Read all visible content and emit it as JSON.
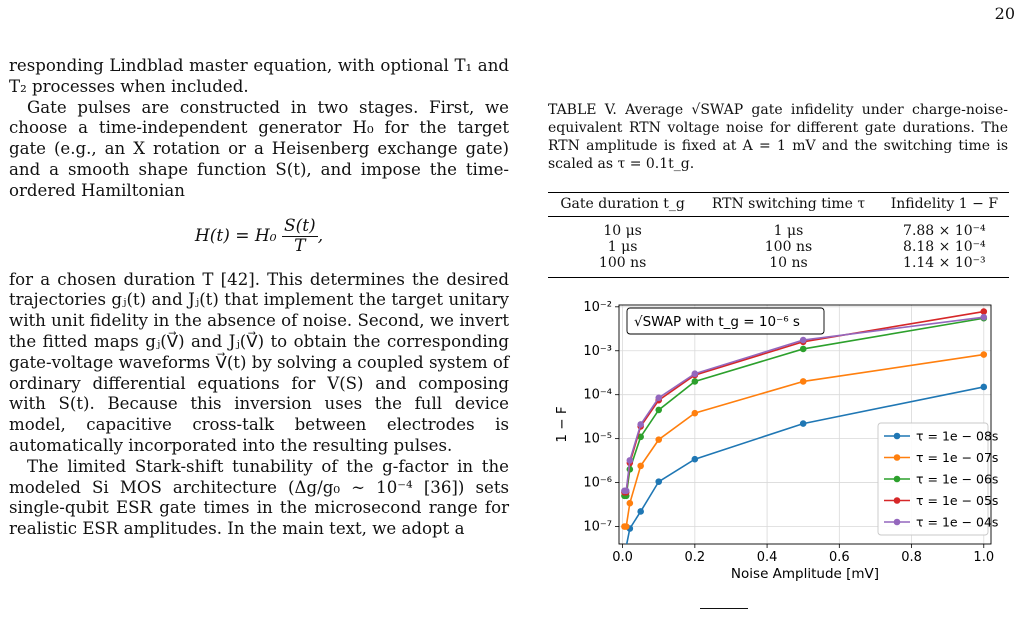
{
  "page_number": "20",
  "left": {
    "p1": "responding Lindblad master equation, with optional T₁ and T₂ processes when included.",
    "p2": "Gate pulses are constructed in two stages. First, we choose a time-independent generator H₀ for the target gate (e.g., an X rotation or a Heisenberg exchange gate) and a smooth shape function S(t), and impose the time-ordered Hamiltonian",
    "eq_lhs": "H(t) = H₀",
    "eq_num": "S(t)",
    "eq_den": "T",
    "eq_tail": ",",
    "p3": "for a chosen duration T [42]. This determines the desired trajectories gⱼ(t) and Jⱼ(t) that implement the target unitary with unit fidelity in the absence of noise. Second, we invert the fitted maps gⱼ(V⃗) and Jⱼ(V⃗) to obtain the corresponding gate-voltage waveforms V⃗(t) by solving a coupled system of ordinary differential equations for V(S) and composing with S(t). Because this inversion uses the full device model, capacitive cross-talk between electrodes is automatically incorporated into the resulting pulses.",
    "p4": "The limited Stark-shift tunability of the g-factor in the modeled Si MOS architecture (Δg/g₀ ∼ 10⁻⁴ [36]) sets single-qubit ESR gate times in the microsecond range for realistic ESR amplitudes. In the main text, we adopt a"
  },
  "caption": "TABLE V. Average √SWAP gate infidelity under charge-noise-equivalent RTN voltage noise for different gate durations. The RTN amplitude is fixed at A = 1 mV and the switching time is scaled as τ = 0.1t_g.",
  "table": {
    "headers": [
      "Gate duration t_g",
      "RTN switching time τ",
      "Infidelity 1 − F"
    ],
    "rows": [
      [
        "10 μs",
        "1 μs",
        "7.88 × 10⁻⁴"
      ],
      [
        "1 μs",
        "100 ns",
        "8.18 × 10⁻⁴"
      ],
      [
        "100 ns",
        "10 ns",
        "1.14 × 10⁻³"
      ]
    ]
  },
  "chart_data": {
    "type": "line",
    "title": "√SWAP with t_g = 10⁻⁶ s",
    "xlabel": "Noise Amplitude [mV]",
    "ylabel": "1 − F",
    "yscale": "log",
    "xlim": [
      -0.01,
      1.02
    ],
    "ylim": [
      4e-08,
      0.011
    ],
    "xticks": [
      "0.0",
      "0.2",
      "0.4",
      "0.6",
      "0.8",
      "1.0"
    ],
    "yticks": [
      "10⁻⁷",
      "10⁻⁶",
      "10⁻⁵",
      "10⁻⁴",
      "10⁻³",
      "10⁻²"
    ],
    "grid": true,
    "legend_position": "lower-right",
    "x": [
      0.005,
      0.01,
      0.02,
      0.05,
      0.1,
      0.2,
      0.5,
      1.0
    ],
    "series": [
      {
        "name": "τ = 1e − 08s",
        "color": "#1f77b4",
        "values": [
          3.5e-08,
          3.5e-08,
          9e-08,
          2.2e-07,
          1.05e-06,
          3.4e-06,
          2.2e-05,
          0.00015
        ]
      },
      {
        "name": "τ = 1e − 07s",
        "color": "#ff7f0e",
        "values": [
          1e-07,
          1e-07,
          3.4e-07,
          2.4e-06,
          9.5e-06,
          3.8e-05,
          0.0002,
          0.00082
        ]
      },
      {
        "name": "τ = 1e − 06s",
        "color": "#2ca02c",
        "values": [
          5e-07,
          5e-07,
          2e-06,
          1.1e-05,
          4.5e-05,
          0.0002,
          0.0011,
          0.0055
        ]
      },
      {
        "name": "τ = 1e − 05s",
        "color": "#d62728",
        "values": [
          6e-07,
          6e-07,
          2.8e-06,
          1.9e-05,
          7.5e-05,
          0.00028,
          0.0016,
          0.0078
        ]
      },
      {
        "name": "τ = 1e − 04s",
        "color": "#9467bd",
        "values": [
          6.5e-07,
          6.5e-07,
          3.2e-06,
          2.1e-05,
          8.5e-05,
          0.0003,
          0.00175,
          0.0058
        ]
      }
    ]
  }
}
